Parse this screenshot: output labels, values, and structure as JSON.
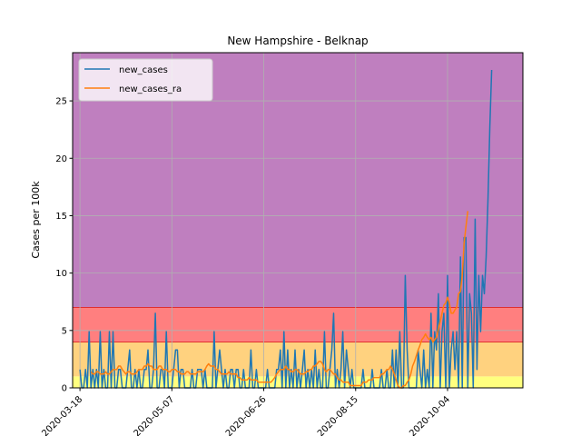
{
  "chart_data": {
    "type": "line",
    "title": "New Hampshire - Belknap",
    "xlabel": "",
    "ylabel": "Cases per 100k",
    "x_start": "2020-03-18",
    "x_end": "2020-11-10",
    "xticks": [
      "2020-03-18",
      "2020-05-07",
      "2020-06-26",
      "2020-08-15",
      "2020-10-04"
    ],
    "yticks": [
      0,
      5,
      10,
      15,
      20,
      25
    ],
    "ylim": [
      0,
      29.2
    ],
    "grid": true,
    "legend_position": "top-left",
    "risk_bands": [
      {
        "from": 0,
        "to": 1,
        "color": "#ffff7f"
      },
      {
        "from": 1,
        "to": 4,
        "color": "#ffd27f"
      },
      {
        "from": 4,
        "to": 7,
        "color": "#ff7f7f"
      },
      {
        "from": 7,
        "to": 29.2,
        "color": "#bf7fbf"
      }
    ],
    "series": [
      {
        "name": "new_cases",
        "color": "#1f77b4",
        "values": [
          1.6,
          0,
          0,
          1.6,
          0,
          4.9,
          0,
          1.6,
          0,
          1.6,
          0,
          4.9,
          0,
          1.6,
          0,
          0,
          4.9,
          0,
          4.9,
          0,
          0,
          1.6,
          1.6,
          0,
          0,
          0,
          1.6,
          3.3,
          0,
          0,
          1.6,
          0,
          1.6,
          0,
          0,
          1.6,
          1.6,
          3.3,
          0,
          0,
          1.6,
          6.5,
          0,
          0,
          1.6,
          1.6,
          0,
          4.9,
          0,
          0,
          0,
          1.6,
          3.3,
          3.3,
          0,
          1.6,
          1.6,
          0,
          0,
          0,
          0,
          1.6,
          0,
          0,
          1.6,
          1.6,
          1.6,
          0,
          1.6,
          0,
          0,
          0,
          0,
          4.9,
          0,
          1.6,
          3.3,
          1.6,
          0,
          1.6,
          0,
          0,
          1.6,
          1.6,
          0,
          1.6,
          1.6,
          0,
          0,
          1.6,
          0,
          0,
          0,
          3.3,
          0,
          0,
          1.6,
          0,
          0,
          0,
          0,
          0,
          1.6,
          0,
          0,
          0,
          0,
          1.6,
          1.6,
          3.3,
          0,
          4.9,
          0,
          3.3,
          0,
          1.6,
          0,
          3.3,
          0,
          1.6,
          0,
          1.6,
          3.3,
          0,
          1.6,
          0,
          1.6,
          0,
          3.3,
          0,
          1.6,
          0,
          0,
          4.9,
          0,
          0,
          1.6,
          3.3,
          6.5,
          0,
          1.6,
          0,
          1.6,
          4.9,
          0,
          3.3,
          1.6,
          0,
          1.6,
          0,
          0,
          0,
          0,
          0,
          1.6,
          0,
          0,
          0,
          0,
          1.6,
          0,
          0,
          0,
          0,
          1.6,
          0,
          0,
          1.6,
          0,
          0,
          3.3,
          0,
          3.3,
          0,
          4.9,
          0,
          0,
          9.8,
          3.3,
          0,
          0,
          0,
          0,
          0,
          3.3,
          1.6,
          0,
          3.3,
          0,
          1.6,
          0,
          6.5,
          0,
          4.9,
          3.3,
          8.2,
          0,
          4.9,
          6.5,
          0,
          9.8,
          0,
          3.3,
          4.9,
          1.6,
          4.9,
          0,
          11.4,
          0,
          13.1,
          13.1,
          0,
          8.2,
          6.5,
          0,
          14.7,
          1.6,
          9.8,
          4.9,
          9.8,
          8.2,
          11.4,
          16.3,
          22.8,
          27.7
        ]
      },
      {
        "name": "new_cases_ra",
        "color": "#ff7f0e",
        "values": [
          null,
          null,
          null,
          null,
          null,
          null,
          1.4,
          1.2,
          1.2,
          1.4,
          1.4,
          1.2,
          1.2,
          1.2,
          1.4,
          1.2,
          1.2,
          1.4,
          1.6,
          1.6,
          1.6,
          1.9,
          1.9,
          1.6,
          1.4,
          1.2,
          1.4,
          1.4,
          1.2,
          1.2,
          1.2,
          1.4,
          1.6,
          1.6,
          1.6,
          1.9,
          1.9,
          2.1,
          1.9,
          1.9,
          1.6,
          1.6,
          1.6,
          1.9,
          1.9,
          1.6,
          1.6,
          1.6,
          1.4,
          1.4,
          1.6,
          1.6,
          1.6,
          1.4,
          1.4,
          1.2,
          1.2,
          1.2,
          1.4,
          1.4,
          1.2,
          1.2,
          1.2,
          1.2,
          1.4,
          1.4,
          1.4,
          1.4,
          1.6,
          1.9,
          2.1,
          1.9,
          1.9,
          1.9,
          1.6,
          1.6,
          1.4,
          1.2,
          1.2,
          1.2,
          1.2,
          1.4,
          1.2,
          1.2,
          1.2,
          1.2,
          0.9,
          0.9,
          0.7,
          0.7,
          0.7,
          0.7,
          0.9,
          0.7,
          0.7,
          0.7,
          0.7,
          0.5,
          0.5,
          0.5,
          0.5,
          0.5,
          0.5,
          0.5,
          0.5,
          0.7,
          0.9,
          1.2,
          1.4,
          1.6,
          1.6,
          1.6,
          1.9,
          1.6,
          1.6,
          1.4,
          1.4,
          1.6,
          1.6,
          1.4,
          1.2,
          1.2,
          1.2,
          1.4,
          1.4,
          1.6,
          1.6,
          1.9,
          1.9,
          2.1,
          2.3,
          2.3,
          2.1,
          1.6,
          1.4,
          1.6,
          1.6,
          1.4,
          1.2,
          1.2,
          0.9,
          0.7,
          0.7,
          0.5,
          0.5,
          0.5,
          0.5,
          0.2,
          0.2,
          0.2,
          0.2,
          0.2,
          0.2,
          0.2,
          0.5,
          0.5,
          0.5,
          0.7,
          0.7,
          0.7,
          0.9,
          0.9,
          0.9,
          0.9,
          1.2,
          1.2,
          1.4,
          1.6,
          1.6,
          1.9,
          1.6,
          1.2,
          0.7,
          0.2,
          0,
          0,
          0.2,
          0.2,
          0.5,
          0.7,
          1.2,
          1.9,
          2.3,
          2.8,
          3.3,
          3.7,
          4.2,
          4.4,
          4.7,
          4.4,
          4.2,
          4.4,
          4.0,
          4.2,
          4.4,
          5.1,
          5.8,
          6.5,
          7.2,
          7.4,
          7.9,
          7.4,
          6.5,
          6.5,
          6.8,
          7.0,
          8.2,
          8.4,
          9.8,
          12.6,
          14.0,
          15.4
        ]
      }
    ]
  }
}
